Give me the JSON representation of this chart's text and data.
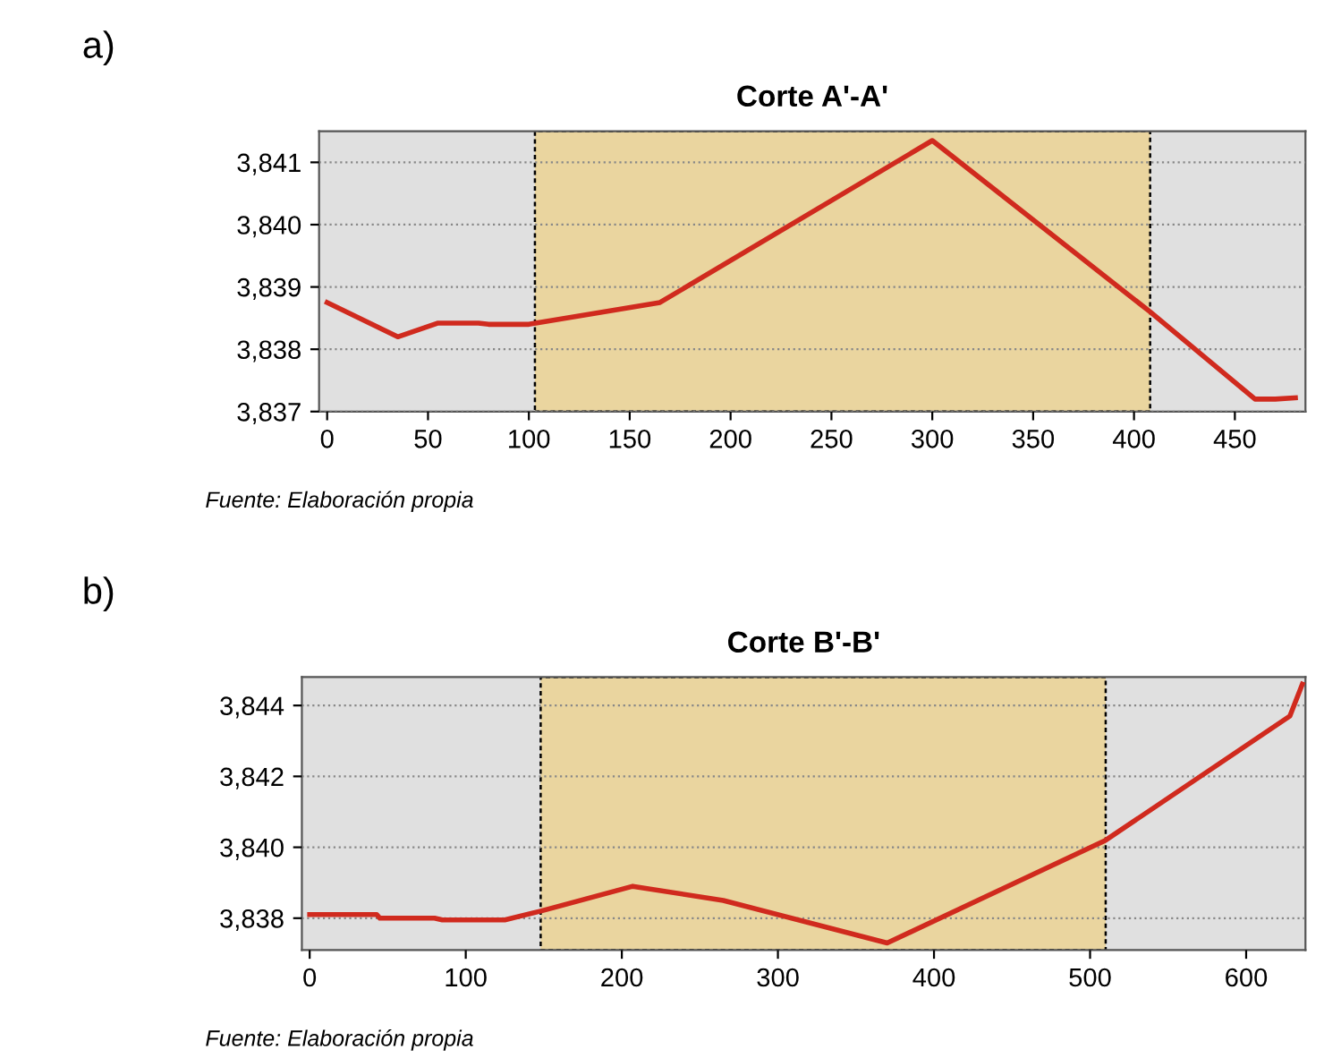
{
  "chart_data": [
    {
      "type": "line",
      "title": "Corte A'-A'",
      "annotations": [
        "a)",
        "Fuente: Elaboración propia"
      ],
      "x": [
        0,
        35,
        55,
        75,
        80,
        100,
        165,
        300,
        408,
        460,
        470,
        480
      ],
      "series": [
        {
          "color": "#d02a1e",
          "values": [
            3838.75,
            3838.2,
            3838.42,
            3838.42,
            3838.4,
            3838.4,
            3838.75,
            3841.35,
            3838.6,
            3837.2,
            3837.2,
            3837.22
          ]
        }
      ],
      "xlim": [
        -4,
        485
      ],
      "xticks": [
        0,
        50,
        100,
        150,
        200,
        250,
        300,
        350,
        400,
        450
      ],
      "ylim": [
        3837,
        3841.5
      ],
      "yticks": [
        {
          "value": 3837,
          "label": "3,837"
        },
        {
          "value": 3838,
          "label": "3,838"
        },
        {
          "value": 3839,
          "label": "3,839"
        },
        {
          "value": 3840,
          "label": "3,840"
        },
        {
          "value": 3841,
          "label": "3,841"
        }
      ],
      "bands": [
        {
          "axis": "x",
          "from": 103,
          "to": 408,
          "color": "#ead59f"
        }
      ],
      "grid": "y",
      "marker": "none",
      "line_style": "solid"
    },
    {
      "type": "line",
      "title": "Corte B'-B'",
      "annotations": [
        "b)",
        "Fuente: Elaboración propia"
      ],
      "x": [
        0,
        43,
        45,
        80,
        85,
        125,
        148,
        207,
        265,
        370,
        510,
        628,
        636
      ],
      "series": [
        {
          "color": "#d02a1e",
          "values": [
            3838.1,
            3838.1,
            3838.0,
            3838.0,
            3837.95,
            3837.95,
            3838.2,
            3838.9,
            3838.5,
            3837.3,
            3840.2,
            3843.7,
            3844.6
          ]
        }
      ],
      "xlim": [
        -5,
        638
      ],
      "xticks": [
        0,
        100,
        200,
        300,
        400,
        500,
        600
      ],
      "ylim": [
        3837.1,
        3844.8
      ],
      "yticks": [
        {
          "value": 3838,
          "label": "3,838"
        },
        {
          "value": 3840,
          "label": "3,840"
        },
        {
          "value": 3842,
          "label": "3,842"
        },
        {
          "value": 3844,
          "label": "3,844"
        }
      ],
      "bands": [
        {
          "axis": "x",
          "from": 148,
          "to": 510,
          "color": "#ead59f"
        }
      ],
      "grid": "y",
      "marker": "none",
      "line_style": "solid"
    }
  ]
}
